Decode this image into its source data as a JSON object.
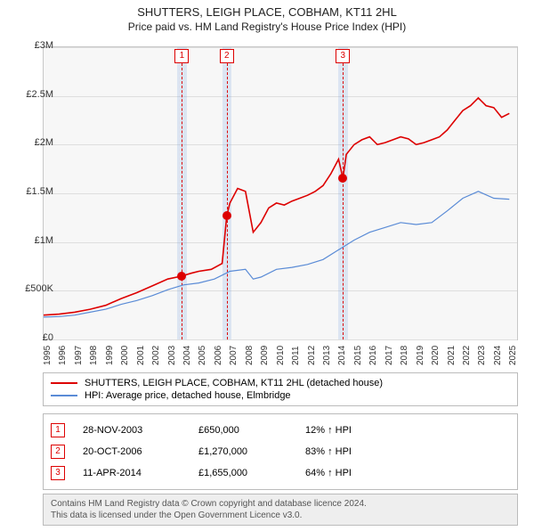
{
  "title": "SHUTTERS, LEIGH PLACE, COBHAM, KT11 2HL",
  "subtitle": "Price paid vs. HM Land Registry's House Price Index (HPI)",
  "chart": {
    "type": "line",
    "background_color": "#f7f7f7",
    "grid_color": "#dedede",
    "x_years": [
      1995,
      1996,
      1997,
      1998,
      1999,
      2000,
      2001,
      2002,
      2003,
      2004,
      2005,
      2006,
      2007,
      2008,
      2009,
      2010,
      2011,
      2012,
      2013,
      2014,
      2015,
      2016,
      2017,
      2018,
      2019,
      2020,
      2021,
      2022,
      2023,
      2024,
      2025
    ],
    "xlim": [
      1995,
      2025.5
    ],
    "ylim": [
      0,
      3000000
    ],
    "ytick_step": 500000,
    "ytick_labels": [
      "£0",
      "£500K",
      "£1M",
      "£1.5M",
      "£2M",
      "£2.5M",
      "£3M"
    ],
    "series": [
      {
        "name": "SHUTTERS, LEIGH PLACE, COBHAM, KT11 2HL (detached house)",
        "color": "#dd0000",
        "width": 1.6,
        "data": [
          [
            1995,
            250000
          ],
          [
            1996,
            260000
          ],
          [
            1997,
            280000
          ],
          [
            1998,
            310000
          ],
          [
            1999,
            350000
          ],
          [
            2000,
            420000
          ],
          [
            2001,
            480000
          ],
          [
            2002,
            550000
          ],
          [
            2003,
            620000
          ],
          [
            2003.9,
            650000
          ],
          [
            2004.5,
            680000
          ],
          [
            2005,
            700000
          ],
          [
            2005.8,
            720000
          ],
          [
            2006.5,
            780000
          ],
          [
            2006.8,
            1270000
          ],
          [
            2007,
            1400000
          ],
          [
            2007.5,
            1550000
          ],
          [
            2008,
            1520000
          ],
          [
            2008.5,
            1100000
          ],
          [
            2009,
            1200000
          ],
          [
            2009.5,
            1350000
          ],
          [
            2010,
            1400000
          ],
          [
            2010.5,
            1380000
          ],
          [
            2011,
            1420000
          ],
          [
            2011.5,
            1450000
          ],
          [
            2012,
            1480000
          ],
          [
            2012.5,
            1520000
          ],
          [
            2013,
            1580000
          ],
          [
            2013.5,
            1700000
          ],
          [
            2014,
            1850000
          ],
          [
            2014.28,
            1655000
          ],
          [
            2014.5,
            1900000
          ],
          [
            2015,
            2000000
          ],
          [
            2015.5,
            2050000
          ],
          [
            2016,
            2080000
          ],
          [
            2016.5,
            2000000
          ],
          [
            2017,
            2020000
          ],
          [
            2017.5,
            2050000
          ],
          [
            2018,
            2080000
          ],
          [
            2018.5,
            2060000
          ],
          [
            2019,
            2000000
          ],
          [
            2019.5,
            2020000
          ],
          [
            2020,
            2050000
          ],
          [
            2020.5,
            2080000
          ],
          [
            2021,
            2150000
          ],
          [
            2021.5,
            2250000
          ],
          [
            2022,
            2350000
          ],
          [
            2022.5,
            2400000
          ],
          [
            2023,
            2480000
          ],
          [
            2023.5,
            2400000
          ],
          [
            2024,
            2380000
          ],
          [
            2024.5,
            2280000
          ],
          [
            2025,
            2320000
          ]
        ]
      },
      {
        "name": "HPI: Average price, detached house, Elmbridge",
        "color": "#5a8bd6",
        "width": 1.2,
        "data": [
          [
            1995,
            230000
          ],
          [
            1996,
            235000
          ],
          [
            1997,
            250000
          ],
          [
            1998,
            280000
          ],
          [
            1999,
            310000
          ],
          [
            2000,
            360000
          ],
          [
            2001,
            400000
          ],
          [
            2002,
            450000
          ],
          [
            2003,
            510000
          ],
          [
            2004,
            560000
          ],
          [
            2005,
            580000
          ],
          [
            2006,
            620000
          ],
          [
            2007,
            700000
          ],
          [
            2008,
            720000
          ],
          [
            2008.5,
            620000
          ],
          [
            2009,
            640000
          ],
          [
            2010,
            720000
          ],
          [
            2011,
            740000
          ],
          [
            2012,
            770000
          ],
          [
            2013,
            820000
          ],
          [
            2014,
            920000
          ],
          [
            2015,
            1020000
          ],
          [
            2016,
            1100000
          ],
          [
            2017,
            1150000
          ],
          [
            2018,
            1200000
          ],
          [
            2019,
            1180000
          ],
          [
            2020,
            1200000
          ],
          [
            2021,
            1320000
          ],
          [
            2022,
            1450000
          ],
          [
            2023,
            1520000
          ],
          [
            2024,
            1450000
          ],
          [
            2025,
            1440000
          ]
        ]
      }
    ],
    "markers": [
      {
        "id": "1",
        "x": 2003.91,
        "y": 650000,
        "box_top": true,
        "band": [
          2003.6,
          2004.25
        ]
      },
      {
        "id": "2",
        "x": 2006.8,
        "y": 1270000,
        "box_top": true,
        "band": [
          2006.5,
          2007.1
        ]
      },
      {
        "id": "3",
        "x": 2014.28,
        "y": 1655000,
        "box_top": true,
        "band": [
          2013.95,
          2014.6
        ]
      }
    ]
  },
  "legend": [
    {
      "color": "#dd0000",
      "label": "SHUTTERS, LEIGH PLACE, COBHAM, KT11 2HL (detached house)"
    },
    {
      "color": "#5a8bd6",
      "label": "HPI: Average price, detached house, Elmbridge"
    }
  ],
  "sales_table": [
    {
      "id": "1",
      "date": "28-NOV-2003",
      "price": "£650,000",
      "pct": "12% ↑ HPI"
    },
    {
      "id": "2",
      "date": "20-OCT-2006",
      "price": "£1,270,000",
      "pct": "83% ↑ HPI"
    },
    {
      "id": "3",
      "date": "11-APR-2014",
      "price": "£1,655,000",
      "pct": "64% ↑ HPI"
    }
  ],
  "footer_line1": "Contains HM Land Registry data © Crown copyright and database licence 2024.",
  "footer_line2": "This data is licensed under the Open Government Licence v3.0."
}
